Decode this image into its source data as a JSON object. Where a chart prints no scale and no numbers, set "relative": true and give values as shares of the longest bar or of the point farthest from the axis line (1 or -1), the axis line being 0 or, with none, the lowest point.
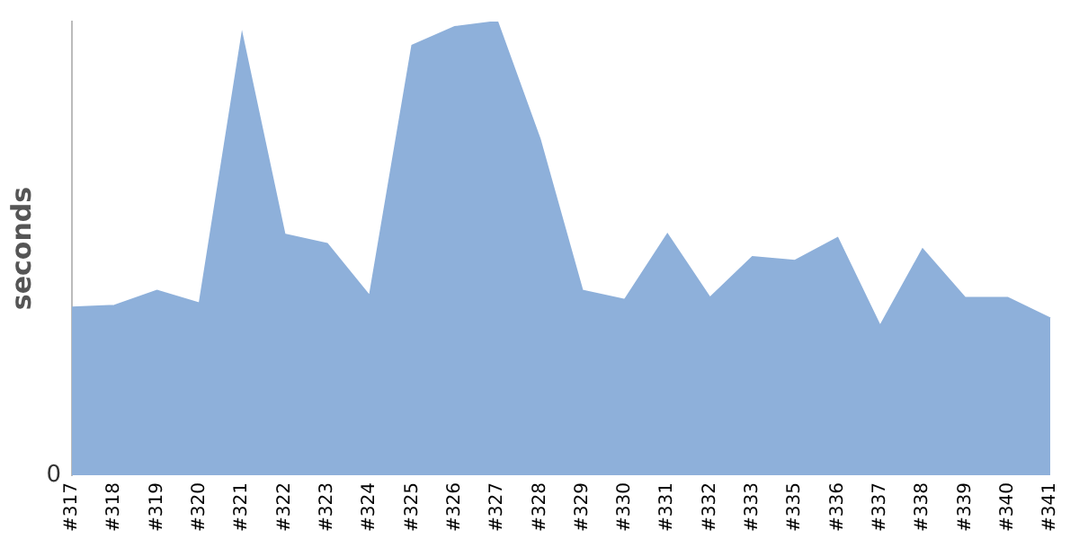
{
  "chart_data": {
    "type": "area",
    "ylabel": "seconds",
    "relative": true,
    "legend": false,
    "categories": [
      "#317",
      "#318",
      "#319",
      "#320",
      "#321",
      "#322",
      "#323",
      "#324",
      "#325",
      "#326",
      "#327",
      "#328",
      "#329",
      "#330",
      "#331",
      "#332",
      "#333",
      "#335",
      "#336",
      "#337",
      "#338",
      "#339",
      "#340",
      "#341"
    ],
    "series": [
      {
        "color": "#8eb0da",
        "values": [
          0.37,
          0.374,
          0.407,
          0.379,
          0.971,
          0.531,
          0.51,
          0.395,
          0.947,
          0.988,
          1,
          0.741,
          0.407,
          0.387,
          0.531,
          0.391,
          0.481,
          0.473,
          0.523,
          0.329,
          0.498,
          0.391,
          0.391,
          0.346
        ]
      }
    ],
    "annotations": [
      "0"
    ]
  }
}
